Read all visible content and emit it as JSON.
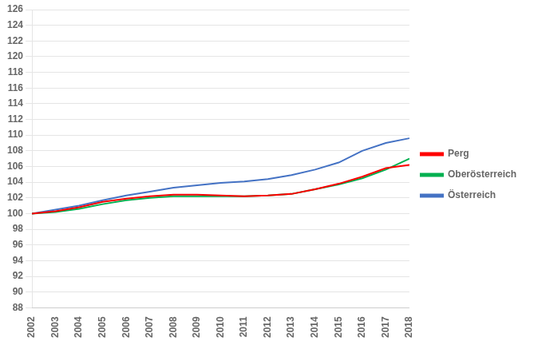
{
  "chart_data": {
    "type": "line",
    "x": [
      2002,
      2003,
      2004,
      2005,
      2006,
      2007,
      2008,
      2009,
      2010,
      2011,
      2012,
      2013,
      2014,
      2015,
      2016,
      2017,
      2018
    ],
    "xlim": [
      2002,
      2018
    ],
    "xticks": [
      2002,
      2003,
      2004,
      2005,
      2006,
      2007,
      2008,
      2009,
      2010,
      2011,
      2012,
      2013,
      2014,
      2015,
      2016,
      2017,
      2018
    ],
    "ylim": [
      88,
      126
    ],
    "yticks": [
      88,
      90,
      92,
      94,
      96,
      98,
      100,
      102,
      104,
      106,
      108,
      110,
      112,
      114,
      116,
      118,
      120,
      122,
      124,
      126
    ],
    "grid": "y",
    "legend": "right",
    "series": [
      {
        "name": "Perg",
        "color": "#ff0000",
        "values": [
          100.0,
          100.3,
          100.8,
          101.5,
          101.9,
          102.2,
          102.4,
          102.4,
          102.3,
          102.2,
          102.3,
          102.5,
          103.1,
          103.8,
          104.7,
          105.8,
          106.2
        ]
      },
      {
        "name": "Oberösterreich",
        "color": "#00b050",
        "values": [
          100.0,
          100.2,
          100.6,
          101.2,
          101.7,
          102.0,
          102.2,
          102.2,
          102.2,
          102.2,
          102.3,
          102.5,
          103.1,
          103.7,
          104.5,
          105.6,
          107.0
        ]
      },
      {
        "name": "Österreich",
        "color": "#4472c4",
        "values": [
          100.0,
          100.5,
          101.0,
          101.7,
          102.3,
          102.8,
          103.3,
          103.6,
          103.9,
          104.1,
          104.4,
          104.9,
          105.6,
          106.5,
          108.0,
          109.0,
          109.6
        ]
      }
    ]
  }
}
